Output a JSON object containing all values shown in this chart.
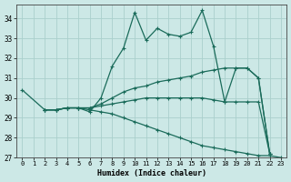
{
  "xlabel": "Humidex (Indice chaleur)",
  "background_color": "#cce8e6",
  "grid_color": "#aacfcc",
  "line_color": "#1a6b5a",
  "xlim": [
    -0.5,
    23.5
  ],
  "ylim": [
    27.0,
    34.7
  ],
  "xticks": [
    0,
    1,
    2,
    3,
    4,
    5,
    6,
    7,
    8,
    9,
    10,
    11,
    12,
    13,
    14,
    15,
    16,
    17,
    18,
    19,
    20,
    21,
    22,
    23
  ],
  "yticks": [
    27,
    28,
    29,
    30,
    31,
    32,
    33,
    34
  ],
  "lines": [
    {
      "x": [
        0,
        2,
        3,
        4,
        5,
        6,
        7,
        8,
        9,
        10,
        11,
        12,
        13,
        14,
        15,
        16,
        17,
        18,
        19,
        20,
        21,
        22
      ],
      "y": [
        30.4,
        29.4,
        29.4,
        29.5,
        29.5,
        29.3,
        30.0,
        31.6,
        32.5,
        34.3,
        32.9,
        33.5,
        33.2,
        33.1,
        33.3,
        34.4,
        32.6,
        29.8,
        31.5,
        31.5,
        31.0,
        27.2
      ]
    },
    {
      "x": [
        2,
        3,
        4,
        5,
        6,
        7,
        8,
        9,
        10,
        11,
        12,
        13,
        14,
        15,
        16,
        17,
        18,
        19,
        20,
        21,
        22
      ],
      "y": [
        29.4,
        29.4,
        29.5,
        29.5,
        29.5,
        29.7,
        30.0,
        30.3,
        30.5,
        30.6,
        30.8,
        30.9,
        31.0,
        31.1,
        31.3,
        31.4,
        31.5,
        31.5,
        31.5,
        31.0,
        27.2
      ]
    },
    {
      "x": [
        2,
        3,
        4,
        5,
        6,
        7,
        8,
        9,
        10,
        11,
        12,
        13,
        14,
        15,
        16,
        17,
        18,
        19,
        20,
        21,
        22
      ],
      "y": [
        29.4,
        29.4,
        29.5,
        29.5,
        29.5,
        29.6,
        29.7,
        29.8,
        29.9,
        30.0,
        30.0,
        30.0,
        30.0,
        30.0,
        30.0,
        29.9,
        29.8,
        29.8,
        29.8,
        29.8,
        27.2
      ]
    },
    {
      "x": [
        2,
        3,
        4,
        5,
        6,
        7,
        8,
        9,
        10,
        11,
        12,
        13,
        14,
        15,
        16,
        17,
        18,
        19,
        20,
        21,
        22,
        23
      ],
      "y": [
        29.4,
        29.4,
        29.5,
        29.5,
        29.4,
        29.3,
        29.2,
        29.0,
        28.8,
        28.6,
        28.4,
        28.2,
        28.0,
        27.8,
        27.6,
        27.5,
        27.4,
        27.3,
        27.2,
        27.1,
        27.1,
        27.0
      ]
    }
  ]
}
